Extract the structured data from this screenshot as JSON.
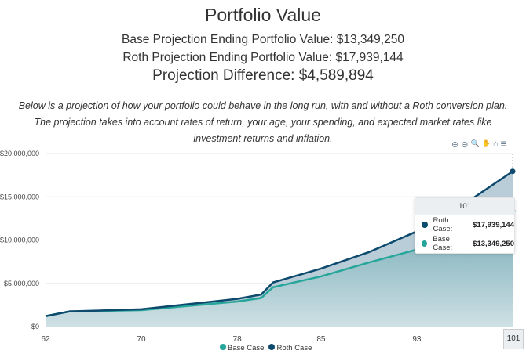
{
  "header": {
    "title": "Portfolio Value",
    "base_line": "Base Projection Ending Portfolio Value: $13,349,250",
    "roth_line": "Roth Projection Ending Portfolio Value: $17,939,144",
    "diff_line": "Projection Difference: $4,589,894",
    "description": "Below is a projection of how your portfolio could behave in the long run, with and without a Roth conversion plan. The projection takes into account rates of return, your age, your spending, and expected market rates like investment returns and inflation."
  },
  "toolbar": {
    "icons": [
      "zoom-in-icon",
      "zoom-out-icon",
      "selection-zoom-icon",
      "pan-icon",
      "reset-home-icon",
      "menu-icon"
    ],
    "glyphs": [
      "⊕",
      "⊖",
      "🔍",
      "✋",
      "⌂",
      "≡"
    ]
  },
  "tooltip": {
    "header": "101",
    "roth_label": "Roth Case:",
    "roth_value": "$17,939,144",
    "base_label": "Base Case:",
    "base_value": "$13,349,250"
  },
  "legend": {
    "base": "Base Case",
    "roth": "Roth Case"
  },
  "chart_data": {
    "type": "area",
    "title": "Portfolio Value",
    "xlabel": "",
    "ylabel": "",
    "x": [
      62,
      64,
      70,
      74,
      78,
      80,
      81,
      85,
      89,
      93,
      97,
      101
    ],
    "xticks": [
      "62",
      "70",
      "78",
      "85",
      "93",
      "101"
    ],
    "xlim": [
      62,
      101
    ],
    "ylim": [
      0,
      20000000
    ],
    "yticks": [
      "$0",
      "$5,000,000",
      "$10,000,000",
      "$15,000,000",
      "$20,000,000"
    ],
    "ytick_values": [
      0,
      5000000,
      10000000,
      15000000,
      20000000
    ],
    "grid": true,
    "legend_position": "bottom",
    "series": [
      {
        "name": "Base Case",
        "color": "#26a69a",
        "values": [
          1200000,
          1750000,
          1900000,
          2400000,
          2900000,
          3300000,
          4550000,
          5800000,
          7400000,
          8900000,
          10900000,
          13349250
        ]
      },
      {
        "name": "Roth Case",
        "color": "#0d4a6e",
        "values": [
          1200000,
          1750000,
          2000000,
          2600000,
          3200000,
          3700000,
          5100000,
          6700000,
          8600000,
          11000000,
          14200000,
          17939144
        ]
      }
    ]
  }
}
